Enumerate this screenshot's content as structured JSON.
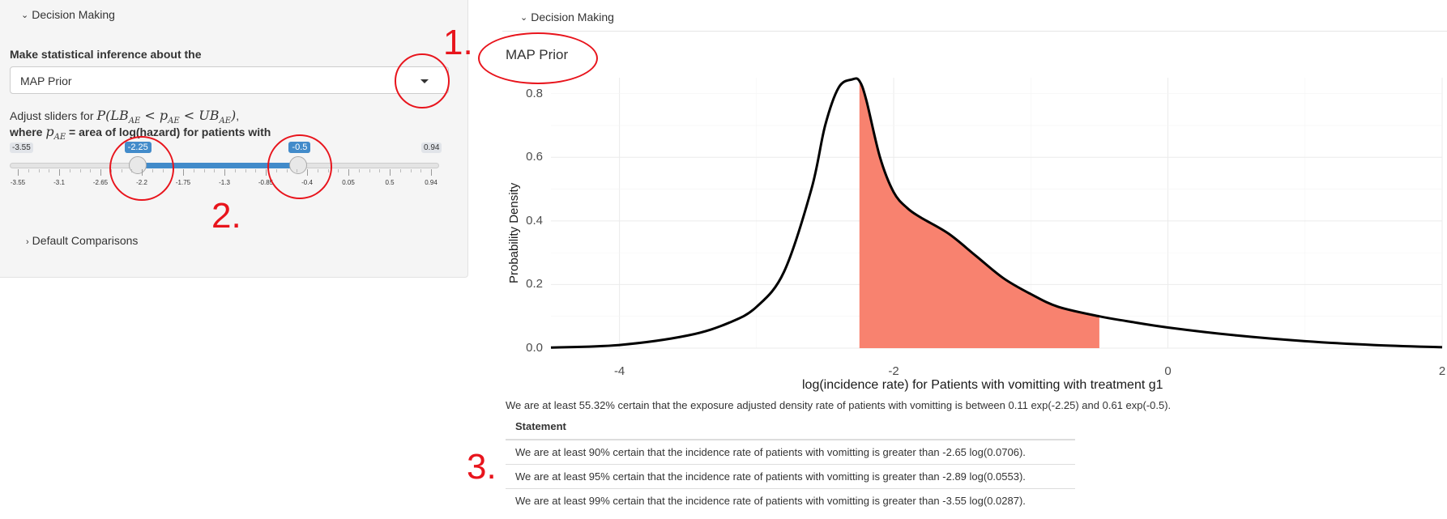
{
  "sidebar": {
    "decision_header": "Decision Making",
    "inference_label": "Make statistical inference about the",
    "select_value": "MAP Prior",
    "adjust_text": "Adjust sliders for",
    "adjust_math": "P(LB",
    "where_text": "where",
    "where_rest": "= area of log(hazard) for patients with",
    "slider": {
      "min_label": "-3.55",
      "max_label": "0.94",
      "low_label": "-2.25",
      "high_label": "-0.5",
      "low_value": -2.25,
      "high_value": -0.5,
      "min": -3.55,
      "max": 0.94,
      "tick_labels": [
        "-3.55",
        "-3.1",
        "-2.65",
        "-2.2",
        "-1.75",
        "-1.3",
        "-0.85",
        "-0.4",
        "0.05",
        "0.5",
        "0.94"
      ]
    },
    "default_comparisons": "Default Comparisons"
  },
  "annotations": [
    "1.",
    "2.",
    "3."
  ],
  "main": {
    "decision_header": "Decision Making",
    "plot_title": "MAP Prior",
    "certain_text": "We are at least 55.32% certain that the exposure adjusted density rate of patients with vomitting is between 0.11 exp(-2.25) and 0.61 exp(-0.5).",
    "table": {
      "header": "Statement",
      "rows": [
        "We are at least 90% certain that the incidence rate of patients with vomitting is greater than -2.65 log(0.0706).",
        "We are at least 95% certain that the incidence rate of patients with vomitting is greater than -2.89 log(0.0553).",
        "We are at least 99% certain that the incidence rate of patients with vomitting is greater than -3.55 log(0.0287)."
      ]
    }
  },
  "chart_data": {
    "type": "area",
    "title": "",
    "xlabel": "log(incidence rate) for Patients with vomitting with treatment g1",
    "ylabel": "Probability Density",
    "xlim": [
      -4.5,
      2
    ],
    "ylim": [
      0,
      0.85
    ],
    "x_ticks": [
      "-4",
      "-2",
      "0",
      "2"
    ],
    "y_ticks": [
      "0.0",
      "0.2",
      "0.4",
      "0.6",
      "0.8"
    ],
    "grid": true,
    "shaded_region": [
      -2.25,
      -0.5
    ],
    "shade_color": "#f8826f",
    "curve_color": "#000000",
    "series": [
      {
        "x": [
          -4.5,
          -4.0,
          -3.5,
          -3.2,
          -3.0,
          -2.8,
          -2.6,
          -2.5,
          -2.4,
          -2.3,
          -2.25,
          -2.2,
          -2.1,
          -2.0,
          -1.9,
          -1.8,
          -1.6,
          -1.4,
          -1.2,
          -1.0,
          -0.8,
          -0.5,
          -0.3,
          0.0,
          0.5,
          1.0,
          1.5,
          2.0
        ],
        "y": [
          0.002,
          0.01,
          0.04,
          0.08,
          0.13,
          0.24,
          0.5,
          0.7,
          0.82,
          0.845,
          0.84,
          0.78,
          0.6,
          0.49,
          0.44,
          0.41,
          0.36,
          0.29,
          0.22,
          0.17,
          0.13,
          0.1,
          0.085,
          0.065,
          0.04,
          0.022,
          0.01,
          0.003
        ]
      }
    ]
  }
}
